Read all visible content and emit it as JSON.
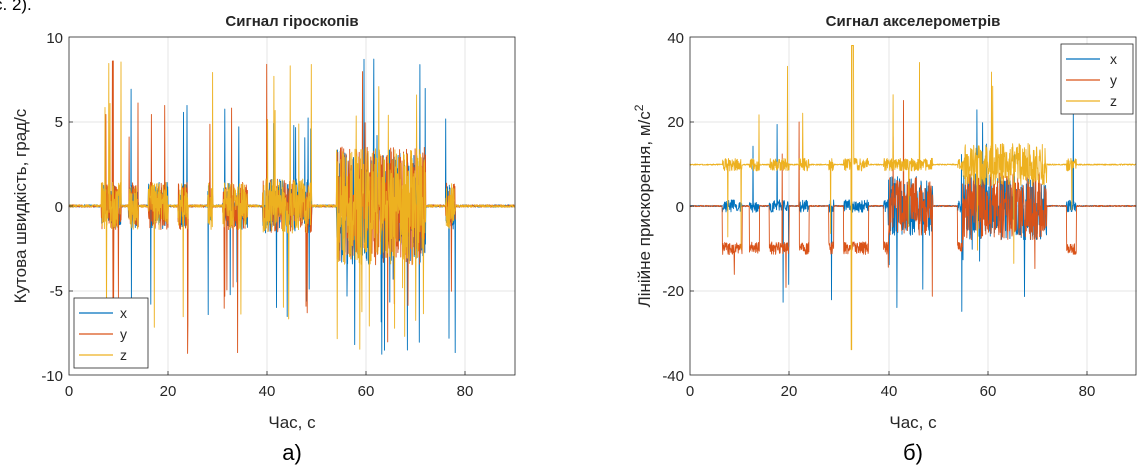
{
  "page": {
    "top_text": "с. 2)."
  },
  "chart_data": [
    {
      "type": "line",
      "title": "Сигнал гіроскопів",
      "caption": "а)",
      "xlabel": "Час, с",
      "ylabel": "Кутова швидкість, град/с",
      "xlim": [
        0,
        90
      ],
      "ylim": [
        -10,
        10
      ],
      "xticks": [
        0,
        20,
        40,
        60,
        80
      ],
      "yticks": [
        -10,
        -5,
        0,
        5,
        10
      ],
      "grid": true,
      "legend_position": "bottom-left",
      "series": [
        {
          "name": "x",
          "color": "#0072BD"
        },
        {
          "name": "y",
          "color": "#D95319"
        },
        {
          "name": "z",
          "color": "#EDB120"
        }
      ]
    },
    {
      "type": "line",
      "title": "Сигнал акселерометрів",
      "caption": "б)",
      "xlabel": "Час, с",
      "ylabel": "Лінійне прискорення, м/с",
      "ylabel_superscript": "2",
      "xlim": [
        0,
        90
      ],
      "ylim": [
        -40,
        40
      ],
      "xticks": [
        0,
        20,
        40,
        60,
        80
      ],
      "yticks": [
        -40,
        -20,
        0,
        20,
        40
      ],
      "grid": true,
      "legend_position": "top-right",
      "series": [
        {
          "name": "x",
          "color": "#0072BD"
        },
        {
          "name": "y",
          "color": "#D95319"
        },
        {
          "name": "z",
          "color": "#EDB120"
        }
      ]
    }
  ]
}
